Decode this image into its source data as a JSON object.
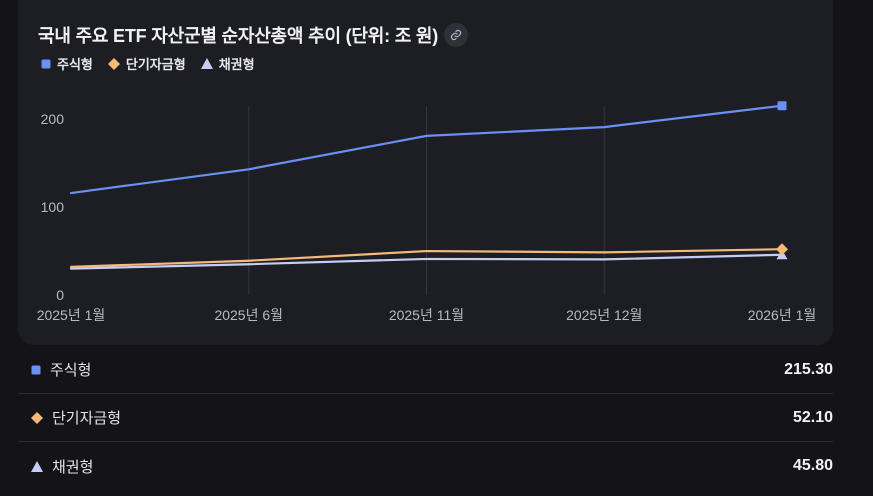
{
  "chart_data": {
    "type": "line",
    "title": "국내 주요 ETF 자산군별 순자산총액 추이 (단위: 조 원)",
    "categories": [
      "2025년 1월",
      "2025년 6월",
      "2025년 11월",
      "2025년 12월",
      "2026년 1월"
    ],
    "y_ticks": [
      "0",
      "100",
      "200"
    ],
    "ylim": [
      0,
      215
    ],
    "grid": "vertical",
    "legend_position": "top-left",
    "series": [
      {
        "name": "주식형",
        "marker": "square",
        "color": "#6b8ff2",
        "values": [
          116,
          143,
          181,
          191,
          215.3
        ]
      },
      {
        "name": "단기자금형",
        "marker": "diamond",
        "color": "#f5b97a",
        "values": [
          32,
          39,
          50,
          48.5,
          52.1
        ]
      },
      {
        "name": "채권형",
        "marker": "triangle",
        "color": "#c5cdf6",
        "values": [
          30,
          35,
          41,
          40.5,
          45.8
        ]
      }
    ]
  },
  "summary": [
    {
      "label": "주식형",
      "value": "215.30"
    },
    {
      "label": "단기자금형",
      "value": "52.10"
    },
    {
      "label": "채권형",
      "value": "45.80"
    }
  ]
}
